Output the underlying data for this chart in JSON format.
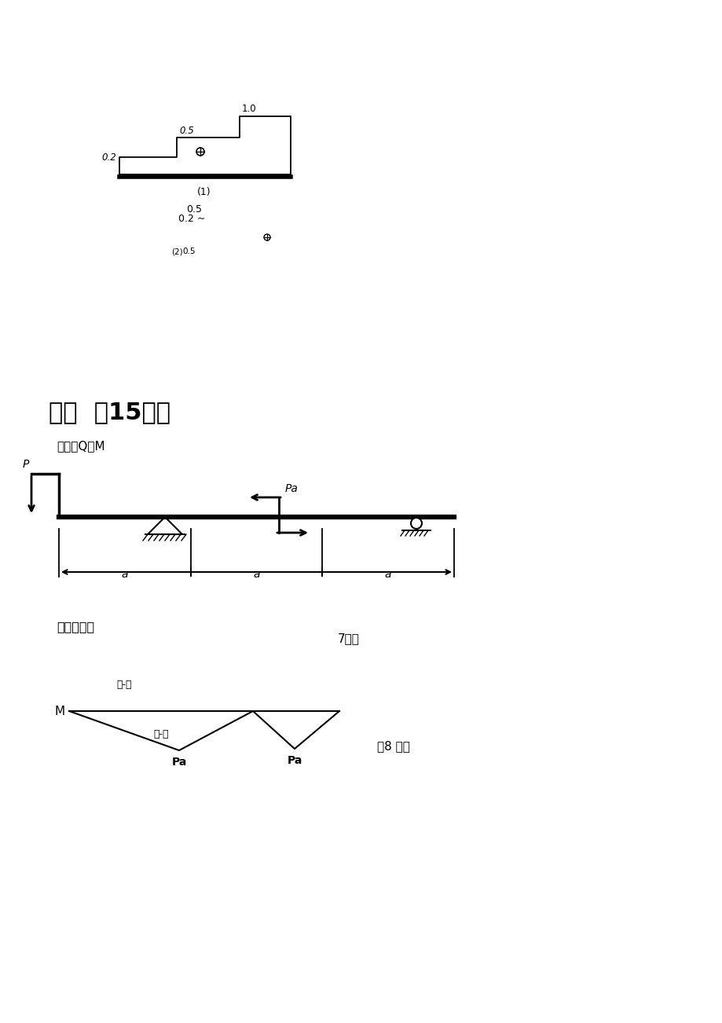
{
  "bg_color": "#ffffff",
  "section4_title": "四．  （15分）",
  "section4_subtitle": "作梁的Q、M",
  "answer_text": "答案如图示",
  "score7": "7分）",
  "score8": "（8 分）",
  "minus_label_q": "（-）",
  "minus_label_m": "（-）",
  "M_label": "M",
  "Pa_label1": "Pa",
  "Pa_label2": "Pa",
  "dim_a1": "a",
  "dim_a2": "a",
  "dim_a3": "a",
  "cs_label_02": "0.2",
  "cs_label_05": "0.5",
  "cs_label_10": "1.0",
  "cs_label_05b": "0.5",
  "cs_label_02tilde": "0.2 ~",
  "cs_label_2": "(2)",
  "cs_label_05c": "0.5",
  "label_1": "(1)",
  "P_label": "P",
  "Pa_moment": "Pa"
}
